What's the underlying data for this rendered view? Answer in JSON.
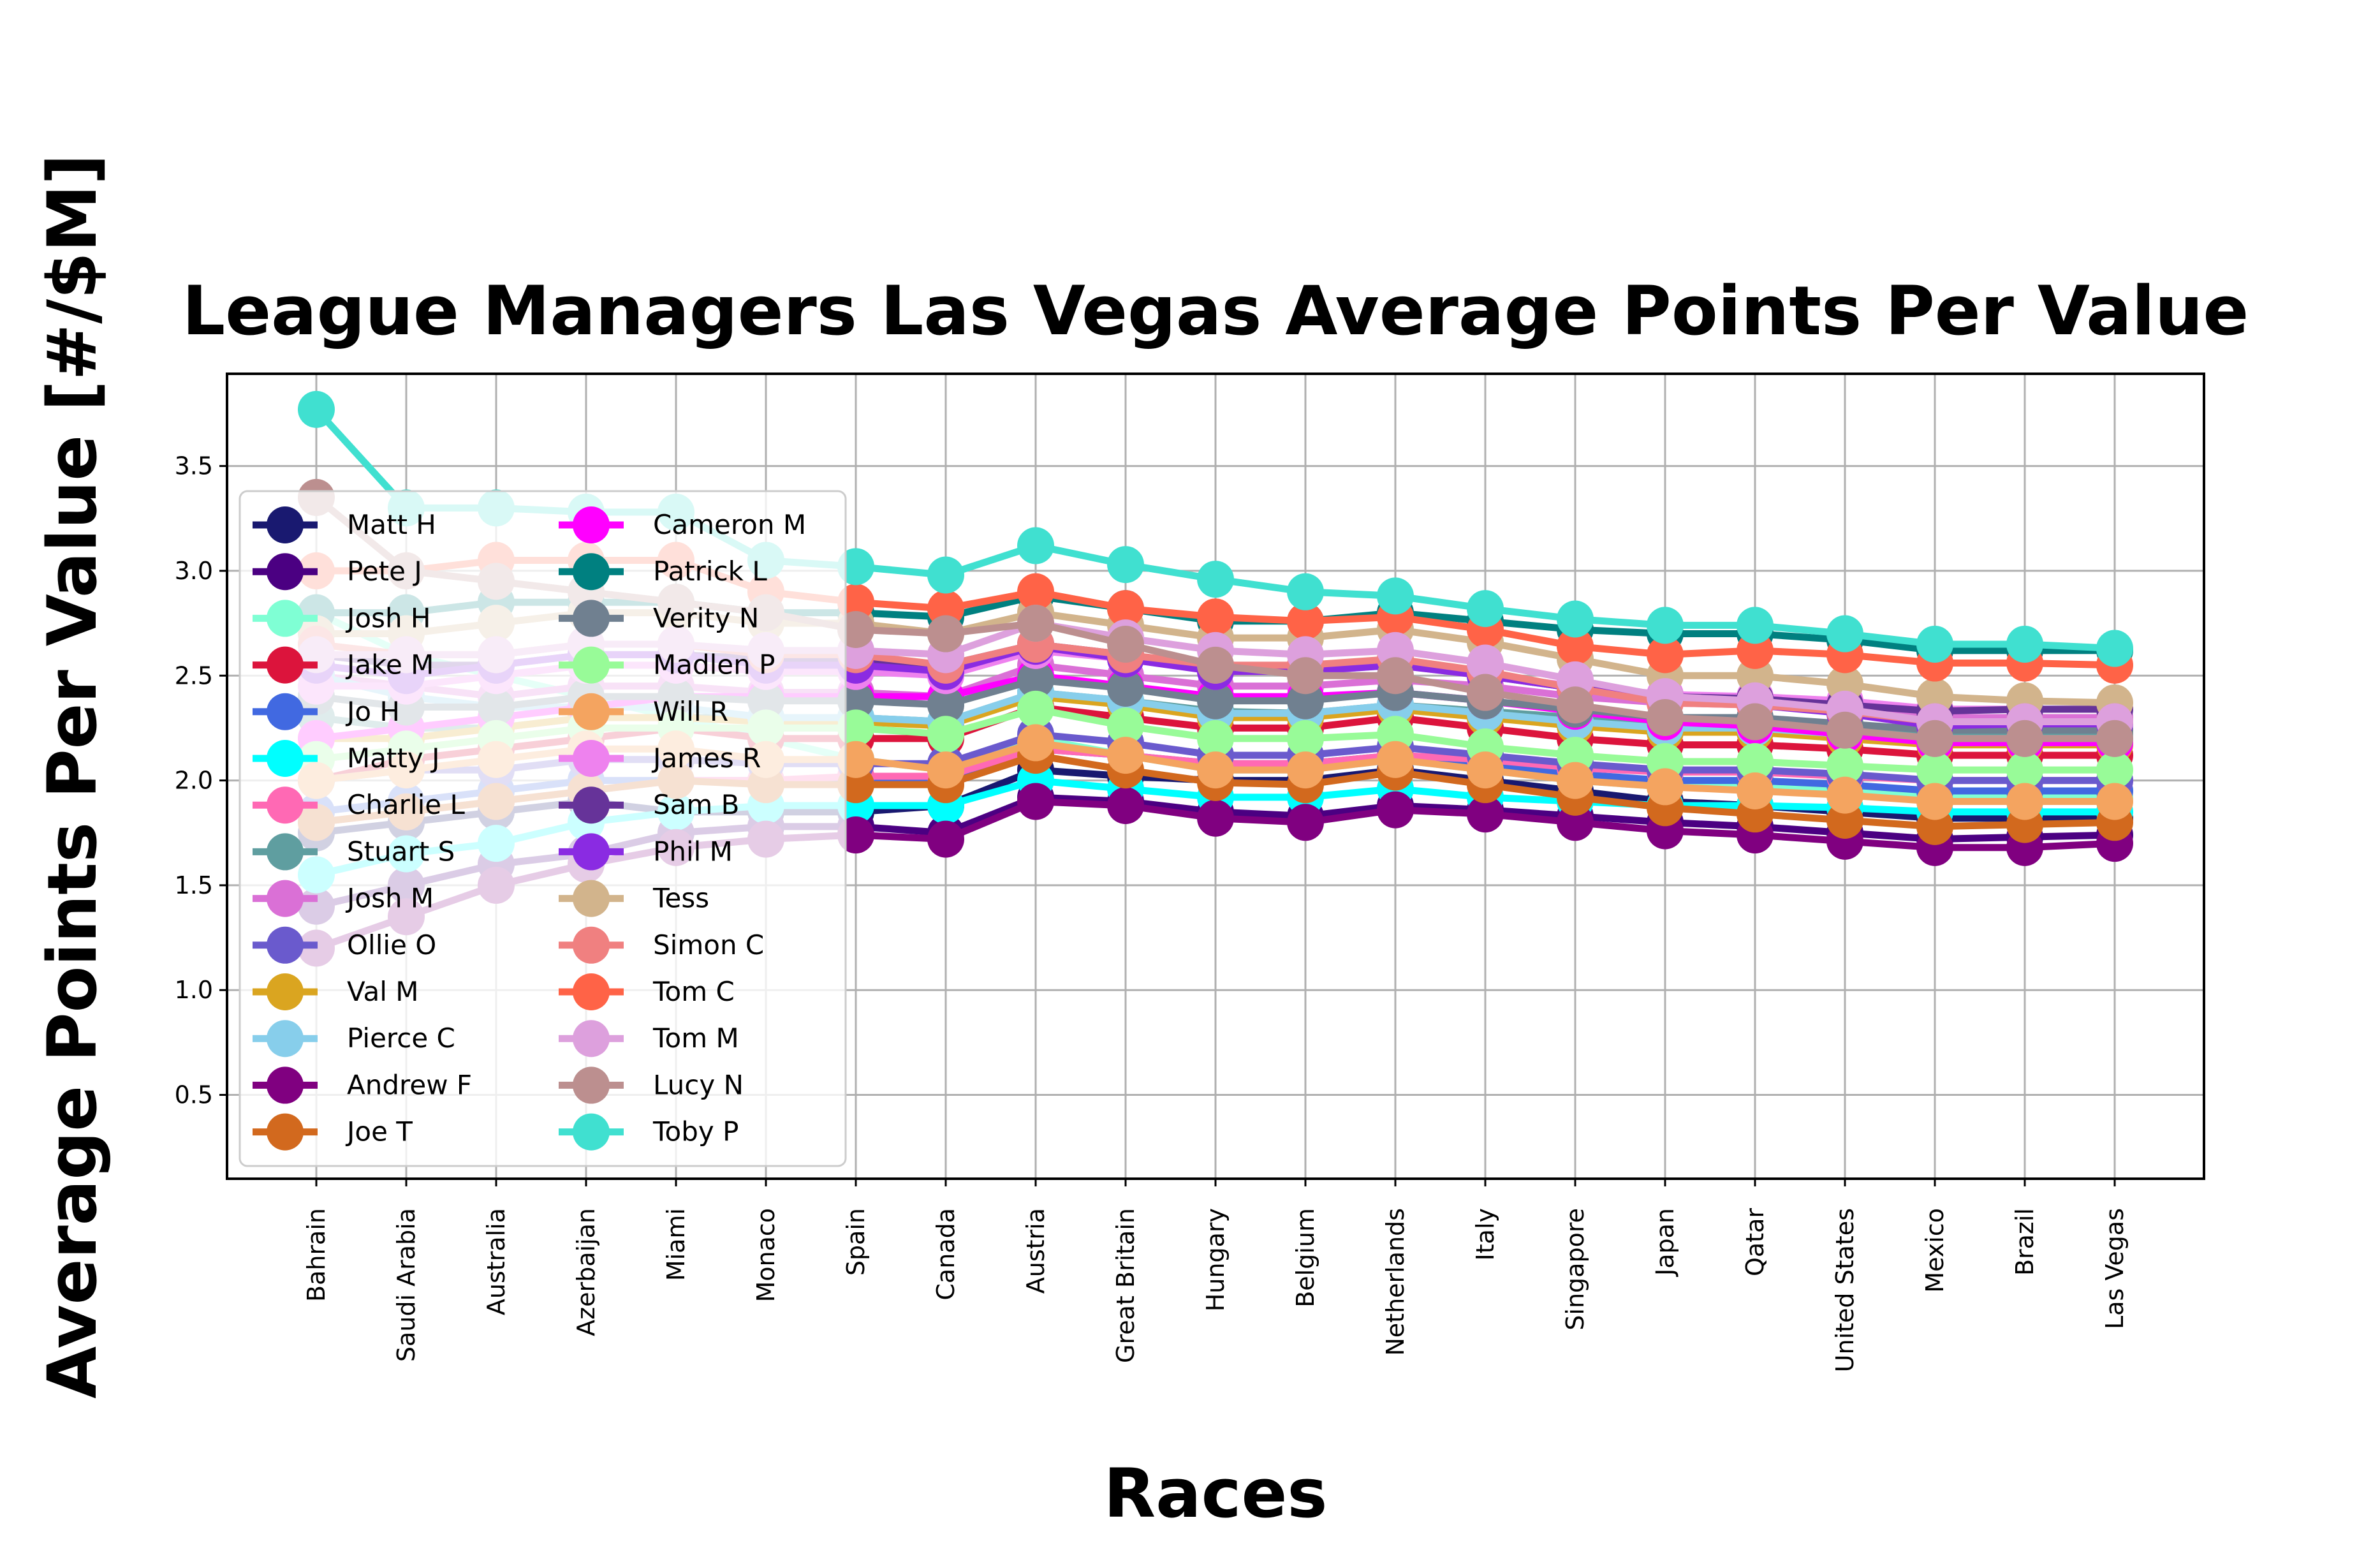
{
  "chart_data": {
    "type": "line",
    "title": "League Managers Las Vegas Average Points Per Value",
    "xlabel": "Races",
    "ylabel": "Average Points Per Value [#/$M]",
    "categories": [
      "Bahrain",
      "Saudi Arabia",
      "Australia",
      "Azerbaijan",
      "Miami",
      "Monaco",
      "Spain",
      "Canada",
      "Austria",
      "Great Britain",
      "Hungary",
      "Belgium",
      "Netherlands",
      "Italy",
      "Singapore",
      "Japan",
      "Qatar",
      "United States",
      "Mexico",
      "Brazil",
      "Las Vegas"
    ],
    "ylim": [
      0.1,
      3.94
    ],
    "yticks": [
      "0.5",
      "1.0",
      "1.5",
      "2.0",
      "2.5",
      "3.0",
      "3.5"
    ],
    "grid": true,
    "legend_position": "upper-left",
    "series": [
      {
        "name": "Matt H",
        "color": "#191970",
        "values": [
          1.75,
          1.8,
          1.85,
          1.9,
          1.85,
          1.85,
          1.85,
          1.88,
          2.05,
          2.02,
          2.0,
          2.0,
          2.05,
          2.0,
          1.95,
          1.9,
          1.88,
          1.85,
          1.82,
          1.82,
          1.82
        ]
      },
      {
        "name": "Pete J",
        "color": "#4B0082",
        "values": [
          1.4,
          1.5,
          1.6,
          1.65,
          1.75,
          1.78,
          1.78,
          1.75,
          1.92,
          1.9,
          1.85,
          1.83,
          1.88,
          1.86,
          1.83,
          1.8,
          1.78,
          1.75,
          1.72,
          1.73,
          1.74
        ]
      },
      {
        "name": "Josh H",
        "color": "#7FFFD4",
        "values": [
          2.8,
          2.6,
          2.5,
          2.4,
          2.3,
          2.2,
          2.1,
          2.05,
          2.2,
          2.12,
          2.05,
          2.05,
          2.1,
          2.05,
          2.0,
          1.97,
          1.97,
          1.95,
          1.92,
          1.92,
          1.92
        ]
      },
      {
        "name": "Jake M",
        "color": "#DC143C",
        "values": [
          2.0,
          2.1,
          2.15,
          2.2,
          2.25,
          2.2,
          2.2,
          2.2,
          2.35,
          2.3,
          2.25,
          2.25,
          2.3,
          2.25,
          2.2,
          2.17,
          2.17,
          2.15,
          2.12,
          2.12,
          2.12
        ]
      },
      {
        "name": "Jo H",
        "color": "#4169E1",
        "values": [
          1.85,
          1.9,
          1.95,
          2.0,
          2.0,
          2.0,
          2.0,
          2.0,
          2.15,
          2.12,
          2.08,
          2.08,
          2.12,
          2.08,
          2.03,
          2.0,
          2.0,
          1.98,
          1.95,
          1.95,
          1.95
        ]
      },
      {
        "name": "Matty J",
        "color": "#00FFFF",
        "values": [
          1.55,
          1.65,
          1.7,
          1.8,
          1.85,
          1.88,
          1.88,
          1.88,
          2.0,
          1.96,
          1.92,
          1.92,
          1.96,
          1.92,
          1.9,
          1.88,
          1.88,
          1.87,
          1.85,
          1.85,
          1.85
        ]
      },
      {
        "name": "Charlie L",
        "color": "#FF69B4",
        "values": [
          1.8,
          1.85,
          1.9,
          1.95,
          2.0,
          2.0,
          2.02,
          2.02,
          2.15,
          2.12,
          2.08,
          2.08,
          2.12,
          2.1,
          2.06,
          2.04,
          2.04,
          2.02,
          2.0,
          2.0,
          2.0
        ]
      },
      {
        "name": "Stuart S",
        "color": "#5F9EA0",
        "values": [
          2.3,
          2.25,
          2.25,
          2.3,
          2.3,
          2.3,
          2.3,
          2.28,
          2.42,
          2.38,
          2.33,
          2.32,
          2.36,
          2.33,
          2.3,
          2.27,
          2.27,
          2.25,
          2.22,
          2.22,
          2.22
        ]
      },
      {
        "name": "Josh M",
        "color": "#DA70D6",
        "values": [
          2.5,
          2.45,
          2.4,
          2.45,
          2.45,
          2.42,
          2.42,
          2.4,
          2.55,
          2.5,
          2.45,
          2.45,
          2.48,
          2.45,
          2.4,
          2.37,
          2.36,
          2.34,
          2.3,
          2.3,
          2.3
        ]
      },
      {
        "name": "Ollie O",
        "color": "#6A5ACD",
        "values": [
          2.0,
          2.05,
          2.05,
          2.1,
          2.1,
          2.08,
          2.08,
          2.08,
          2.22,
          2.18,
          2.12,
          2.12,
          2.16,
          2.12,
          2.08,
          2.05,
          2.05,
          2.03,
          2.0,
          2.0,
          2.0
        ]
      },
      {
        "name": "Val M",
        "color": "#DAA520",
        "values": [
          2.2,
          2.2,
          2.25,
          2.3,
          2.3,
          2.28,
          2.28,
          2.26,
          2.4,
          2.36,
          2.3,
          2.3,
          2.34,
          2.3,
          2.26,
          2.23,
          2.23,
          2.2,
          2.17,
          2.17,
          2.17
        ]
      },
      {
        "name": "Pierce C",
        "color": "#87CEEB",
        "values": [
          2.5,
          2.4,
          2.35,
          2.35,
          2.35,
          2.3,
          2.3,
          2.28,
          2.42,
          2.38,
          2.32,
          2.32,
          2.36,
          2.32,
          2.28,
          2.25,
          2.25,
          2.22,
          2.2,
          2.2,
          2.2
        ]
      },
      {
        "name": "Andrew F",
        "color": "#800080",
        "values": [
          1.2,
          1.35,
          1.5,
          1.6,
          1.68,
          1.72,
          1.74,
          1.72,
          1.9,
          1.88,
          1.82,
          1.8,
          1.86,
          1.84,
          1.8,
          1.76,
          1.74,
          1.71,
          1.68,
          1.68,
          1.7
        ]
      },
      {
        "name": "Joe T",
        "color": "#D2691E",
        "values": [
          1.8,
          1.85,
          1.9,
          1.95,
          2.0,
          1.98,
          1.98,
          1.98,
          2.12,
          2.05,
          1.99,
          1.98,
          2.04,
          1.98,
          1.92,
          1.87,
          1.84,
          1.81,
          1.78,
          1.79,
          1.8
        ]
      },
      {
        "name": "Cameron M",
        "color": "#FF00FF",
        "values": [
          2.2,
          2.25,
          2.3,
          2.35,
          2.4,
          2.4,
          2.4,
          2.4,
          2.5,
          2.45,
          2.4,
          2.4,
          2.42,
          2.38,
          2.33,
          2.28,
          2.26,
          2.22,
          2.18,
          2.18,
          2.18
        ]
      },
      {
        "name": "Patrick L",
        "color": "#008080",
        "values": [
          2.8,
          2.8,
          2.85,
          2.85,
          2.85,
          2.8,
          2.8,
          2.78,
          2.88,
          2.82,
          2.76,
          2.76,
          2.8,
          2.76,
          2.72,
          2.7,
          2.7,
          2.67,
          2.62,
          2.62,
          2.62
        ]
      },
      {
        "name": "Verity N",
        "color": "#708090",
        "values": [
          2.4,
          2.35,
          2.35,
          2.4,
          2.4,
          2.38,
          2.38,
          2.36,
          2.48,
          2.44,
          2.38,
          2.38,
          2.42,
          2.38,
          2.34,
          2.3,
          2.3,
          2.27,
          2.24,
          2.24,
          2.24
        ]
      },
      {
        "name": "Madlen P",
        "color": "#98FB98",
        "values": [
          2.1,
          2.15,
          2.2,
          2.25,
          2.25,
          2.25,
          2.25,
          2.22,
          2.34,
          2.26,
          2.2,
          2.2,
          2.22,
          2.16,
          2.12,
          2.09,
          2.09,
          2.07,
          2.05,
          2.05,
          2.05
        ]
      },
      {
        "name": "Will R",
        "color": "#F4A460",
        "values": [
          2.0,
          2.05,
          2.1,
          2.15,
          2.15,
          2.1,
          2.1,
          2.05,
          2.18,
          2.12,
          2.05,
          2.05,
          2.1,
          2.05,
          2.0,
          1.97,
          1.95,
          1.93,
          1.9,
          1.9,
          1.9
        ]
      },
      {
        "name": "James R",
        "color": "#EE82EE",
        "values": [
          2.45,
          2.45,
          2.5,
          2.55,
          2.55,
          2.52,
          2.52,
          2.5,
          2.62,
          2.58,
          2.52,
          2.52,
          2.55,
          2.5,
          2.45,
          2.41,
          2.4,
          2.38,
          2.34,
          2.34,
          2.34
        ]
      },
      {
        "name": "Sam B",
        "color": "#663399",
        "values": [
          2.6,
          2.55,
          2.55,
          2.6,
          2.6,
          2.58,
          2.58,
          2.55,
          2.65,
          2.6,
          2.54,
          2.53,
          2.56,
          2.5,
          2.44,
          2.4,
          2.39,
          2.36,
          2.33,
          2.34,
          2.34
        ]
      },
      {
        "name": "Phil M",
        "color": "#8A2BE2",
        "values": [
          2.55,
          2.5,
          2.55,
          2.6,
          2.6,
          2.55,
          2.55,
          2.52,
          2.64,
          2.58,
          2.52,
          2.52,
          2.55,
          2.5,
          2.44,
          2.38,
          2.36,
          2.32,
          2.26,
          2.27,
          2.27
        ]
      },
      {
        "name": "Tess",
        "color": "#D2B48C",
        "values": [
          2.7,
          2.7,
          2.75,
          2.8,
          2.8,
          2.75,
          2.75,
          2.7,
          2.8,
          2.74,
          2.68,
          2.68,
          2.72,
          2.66,
          2.58,
          2.5,
          2.5,
          2.46,
          2.4,
          2.38,
          2.37
        ]
      },
      {
        "name": "Simon C",
        "color": "#F08080",
        "values": [
          2.65,
          2.6,
          2.6,
          2.65,
          2.65,
          2.6,
          2.6,
          2.55,
          2.65,
          2.6,
          2.55,
          2.55,
          2.58,
          2.52,
          2.44,
          2.37,
          2.36,
          2.33,
          2.28,
          2.28,
          2.28
        ]
      },
      {
        "name": "Tom C",
        "color": "#FF6347",
        "values": [
          3.0,
          3.0,
          3.05,
          3.05,
          3.05,
          2.9,
          2.85,
          2.82,
          2.9,
          2.82,
          2.78,
          2.76,
          2.78,
          2.72,
          2.64,
          2.6,
          2.62,
          2.6,
          2.56,
          2.56,
          2.55
        ]
      },
      {
        "name": "Tom M",
        "color": "#DDA0DD",
        "values": [
          2.6,
          2.6,
          2.6,
          2.65,
          2.65,
          2.62,
          2.62,
          2.6,
          2.75,
          2.68,
          2.62,
          2.6,
          2.62,
          2.56,
          2.48,
          2.4,
          2.38,
          2.34,
          2.28,
          2.28,
          2.28
        ]
      },
      {
        "name": "Lucy N",
        "color": "#BC8F8F",
        "values": [
          3.35,
          3.0,
          2.95,
          2.9,
          2.85,
          2.8,
          2.72,
          2.7,
          2.75,
          2.65,
          2.55,
          2.5,
          2.5,
          2.42,
          2.36,
          2.3,
          2.28,
          2.24,
          2.2,
          2.2,
          2.2
        ]
      },
      {
        "name": "Toby P",
        "color": "#40E0D0",
        "values": [
          3.77,
          3.3,
          3.3,
          3.28,
          3.28,
          3.05,
          3.02,
          2.98,
          3.12,
          3.03,
          2.96,
          2.9,
          2.88,
          2.82,
          2.77,
          2.74,
          2.74,
          2.7,
          2.65,
          2.65,
          2.63
        ]
      }
    ]
  }
}
